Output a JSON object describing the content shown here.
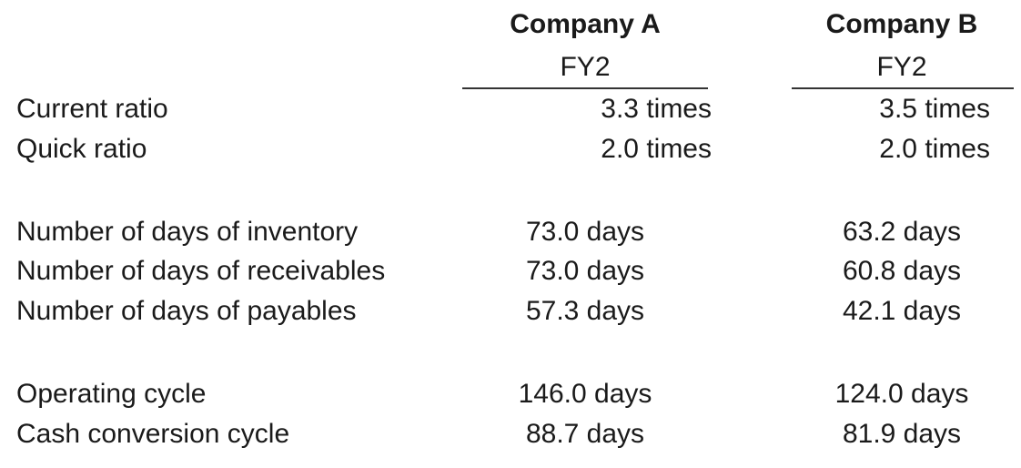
{
  "header": {
    "company_a": "Company A",
    "company_b": "Company B",
    "period_a": "FY2",
    "period_b": "FY2"
  },
  "rows": [
    {
      "label": "Current ratio",
      "a": "3.3 times",
      "b": "3.5 times"
    },
    {
      "label": "Quick ratio",
      "a": "2.0 times",
      "b": "2.0 times"
    },
    {
      "label": "Number of days of inventory",
      "a": "73.0 days",
      "b": "63.2 days"
    },
    {
      "label": "Number of days of receivables",
      "a": "73.0 days",
      "b": "60.8 days"
    },
    {
      "label": "Number of days of payables",
      "a": "57.3 days",
      "b": "42.1 days"
    },
    {
      "label": "Operating cycle",
      "a": "146.0 days",
      "b": "124.0 days"
    },
    {
      "label": "Cash conversion cycle",
      "a": "88.7 days",
      "b": "81.9 days"
    }
  ]
}
